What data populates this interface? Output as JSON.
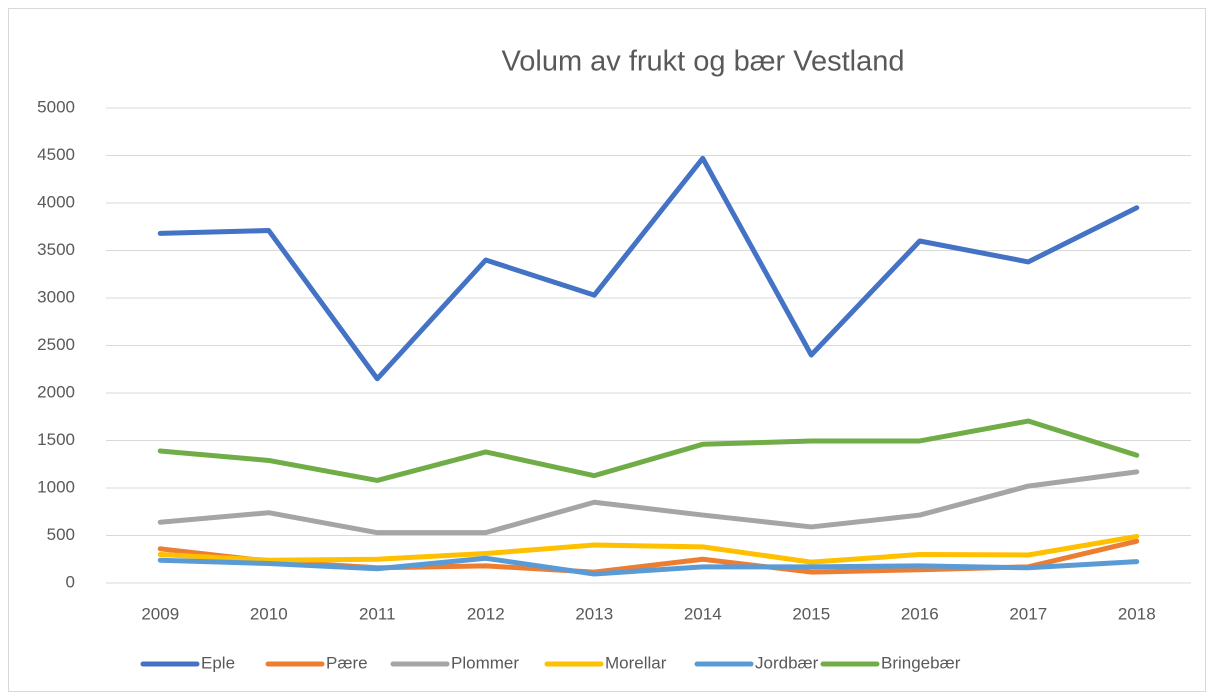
{
  "chart_data": {
    "type": "line",
    "title": "Volum av frukt og bær Vestland",
    "categories": [
      "2009",
      "2010",
      "2011",
      "2012",
      "2013",
      "2014",
      "2015",
      "2016",
      "2017",
      "2018"
    ],
    "series": [
      {
        "name": "Eple",
        "color": "#4472c4",
        "values": [
          3680,
          3710,
          2150,
          3400,
          3030,
          4470,
          2400,
          3600,
          3380,
          3950
        ]
      },
      {
        "name": "Pære",
        "color": "#ed7d31",
        "values": [
          360,
          230,
          160,
          180,
          115,
          250,
          115,
          140,
          170,
          440
        ]
      },
      {
        "name": "Plommer",
        "color": "#a5a5a5",
        "values": [
          640,
          740,
          530,
          530,
          850,
          715,
          590,
          715,
          1020,
          1170
        ]
      },
      {
        "name": "Morellar",
        "color": "#ffc000",
        "values": [
          300,
          240,
          250,
          310,
          400,
          380,
          220,
          300,
          295,
          490
        ]
      },
      {
        "name": "Jordbær",
        "color": "#5b9bd5",
        "values": [
          240,
          205,
          150,
          260,
          95,
          170,
          170,
          180,
          160,
          225
        ]
      },
      {
        "name": "Bringebær",
        "color": "#70ad47",
        "values": [
          1390,
          1290,
          1080,
          1380,
          1130,
          1460,
          1495,
          1495,
          1705,
          1345
        ]
      }
    ],
    "ylim": [
      0,
      5000
    ],
    "yticks": [
      0,
      500,
      1000,
      1500,
      2000,
      2500,
      3000,
      3500,
      4000,
      4500,
      5000
    ],
    "grid": true,
    "legend": "bottom"
  }
}
